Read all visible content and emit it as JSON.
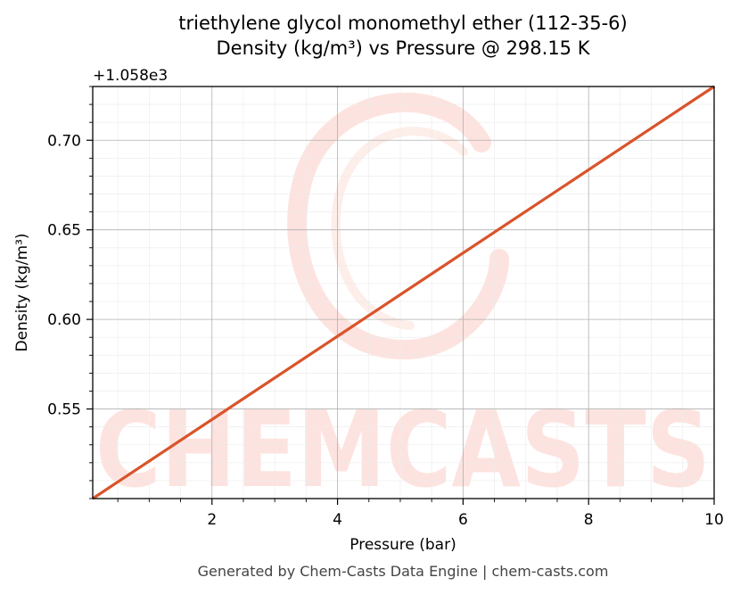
{
  "chart_data": {
    "type": "line",
    "title": "triethylene glycol monomethyl ether (112-35-6)",
    "subtitle": "Density (kg/m³) vs Pressure @ 298.15 K",
    "xlabel": "Pressure (bar)",
    "ylabel": "Density (kg/m³)",
    "y_offset_label": "+1.058e3",
    "xlim": [
      0.1,
      10
    ],
    "ylim": [
      0.5,
      0.73
    ],
    "x_ticks": [
      2,
      4,
      6,
      8,
      10
    ],
    "x_tick_labels": [
      "2",
      "4",
      "6",
      "8",
      "10"
    ],
    "y_ticks": [
      0.55,
      0.6,
      0.65,
      0.7
    ],
    "y_tick_labels": [
      "0.55",
      "0.60",
      "0.65",
      "0.70"
    ],
    "grid": true,
    "series": [
      {
        "color": "#d9542b",
        "x": [
          0.1,
          10
        ],
        "y": [
          0.5,
          0.73
        ]
      }
    ]
  },
  "watermark": {
    "text": "CHEMCASTS",
    "color": "#fde3df"
  },
  "footer": "Generated by Chem-Casts Data Engine | chem-casts.com"
}
